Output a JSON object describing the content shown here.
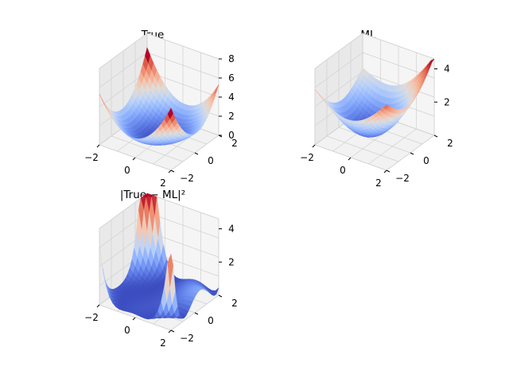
{
  "chart_data": [
    {
      "type": "surface",
      "title": "True",
      "x_ticks": [
        "−2",
        "0",
        "2"
      ],
      "y_ticks": [
        "−2",
        "0",
        "2"
      ],
      "z_ticks": [
        "0",
        "2",
        "4",
        "6",
        "8"
      ],
      "x_range": [
        -2,
        2
      ],
      "y_range": [
        -2,
        2
      ],
      "zlim": [
        0,
        8
      ],
      "colormap": "coolwarm",
      "surface": "z = (x^2 + y^2)/2 + 0.05*x^2*y^2 (bowl shape)"
    },
    {
      "type": "surface",
      "title": "ML",
      "x_ticks": [
        "−2",
        "0",
        "2"
      ],
      "y_ticks": [
        "−2",
        "0",
        "2"
      ],
      "z_ticks": [
        "2",
        "4"
      ],
      "x_range": [
        -2,
        2
      ],
      "y_range": [
        -2,
        2
      ],
      "zlim": [
        0,
        4.6
      ],
      "colormap": "coolwarm",
      "surface": "approximate bowl fitted by ML"
    },
    {
      "type": "surface",
      "title": "|True − ML|²",
      "x_ticks": [
        "−2",
        "0",
        "2"
      ],
      "y_ticks": [
        "−2",
        "0",
        "2"
      ],
      "z_ticks": [
        "2",
        "4"
      ],
      "x_range": [
        -2,
        2
      ],
      "y_range": [
        -2,
        2
      ],
      "zlim": [
        0,
        4.6
      ],
      "colormap": "coolwarm",
      "surface": "squared error, large at corners"
    }
  ]
}
